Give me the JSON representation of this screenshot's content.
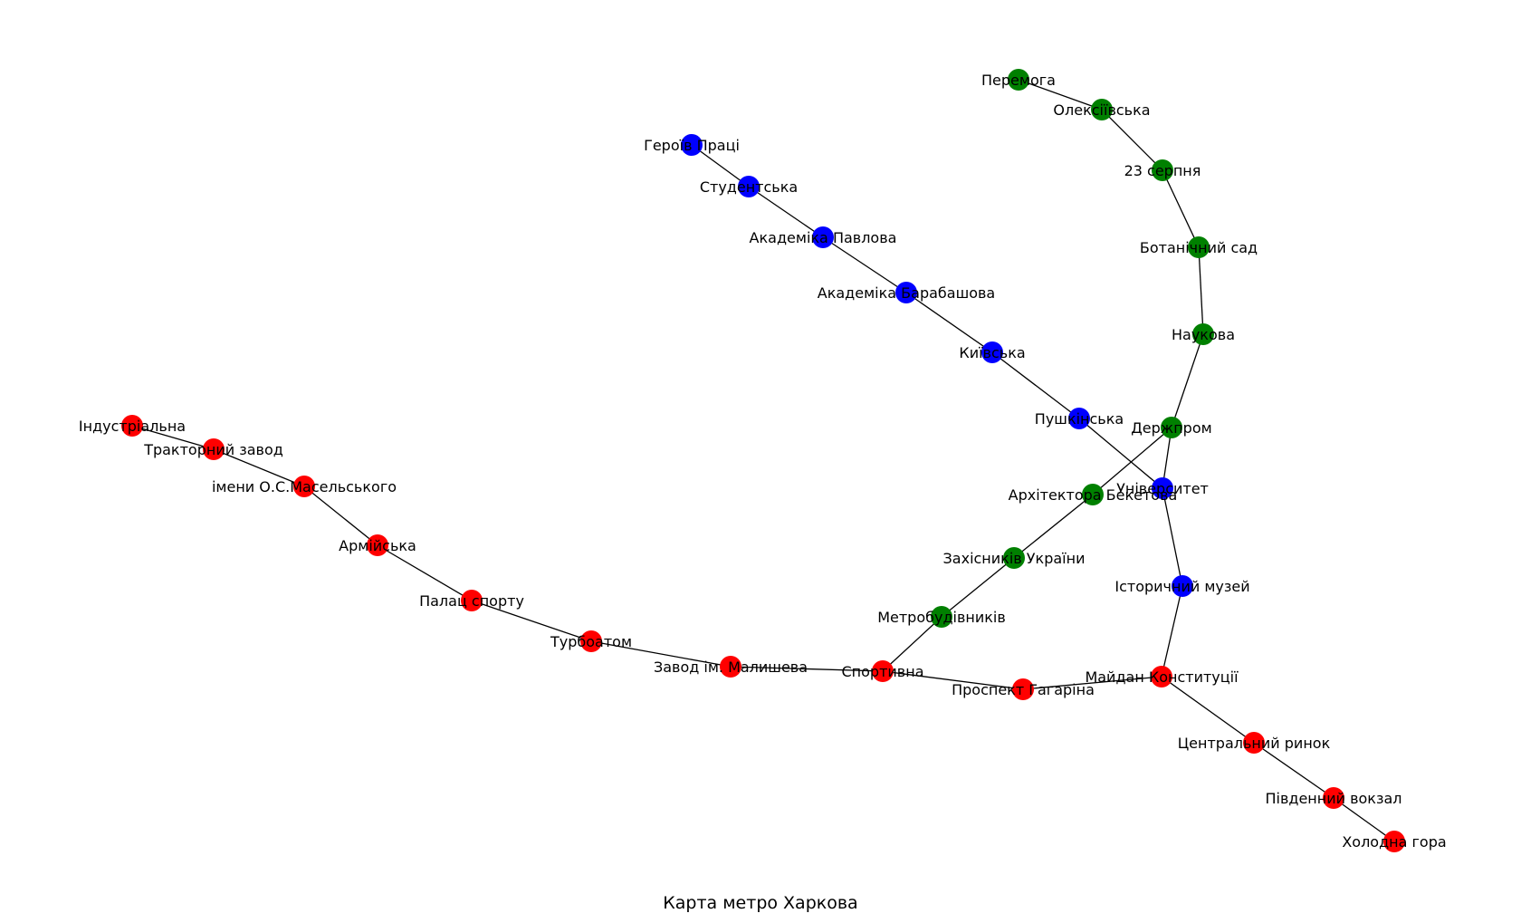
{
  "title": "Карта метро Харкова",
  "colors": {
    "red": "#ff0000",
    "blue": "#0000ff",
    "green": "#008000",
    "edge": "#000000"
  },
  "stations": [
    {
      "id": "industrialna",
      "name": "Індустріальна",
      "line": "red"
    },
    {
      "id": "traktornyi",
      "name": "Тракторний завод",
      "line": "red"
    },
    {
      "id": "maselskoho",
      "name": "імени О.С.Масельського",
      "line": "red"
    },
    {
      "id": "armiiska",
      "name": "Армійська",
      "line": "red"
    },
    {
      "id": "palats",
      "name": "Палац спорту",
      "line": "red"
    },
    {
      "id": "turboatom",
      "name": "Турбоатом",
      "line": "red"
    },
    {
      "id": "malysheva",
      "name": "Завод ім. Малишева",
      "line": "red"
    },
    {
      "id": "sportyvna",
      "name": "Спортивна",
      "line": "red"
    },
    {
      "id": "haharina",
      "name": "Проспект Гагаріна",
      "line": "red"
    },
    {
      "id": "maidan",
      "name": "Майдан Конституції",
      "line": "red"
    },
    {
      "id": "rynok",
      "name": "Центральний ринок",
      "line": "red"
    },
    {
      "id": "vokzal",
      "name": "Південний вокзал",
      "line": "red"
    },
    {
      "id": "kholodna",
      "name": "Холодна гора",
      "line": "red"
    },
    {
      "id": "heroiv",
      "name": "Героїв Праці",
      "line": "blue"
    },
    {
      "id": "studentska",
      "name": "Студентська",
      "line": "blue"
    },
    {
      "id": "pavlova",
      "name": "Академіка Павлова",
      "line": "blue"
    },
    {
      "id": "barabashova",
      "name": "Академіка Барабашова",
      "line": "blue"
    },
    {
      "id": "kyivska",
      "name": "Київська",
      "line": "blue"
    },
    {
      "id": "pushkinska",
      "name": "Пушкінська",
      "line": "blue"
    },
    {
      "id": "universytet",
      "name": "Університет",
      "line": "blue"
    },
    {
      "id": "muzei",
      "name": "Історичний  музей",
      "line": "blue"
    },
    {
      "id": "peremoha",
      "name": "Перемога",
      "line": "green"
    },
    {
      "id": "oleksiivska",
      "name": "Олексіївська",
      "line": "green"
    },
    {
      "id": "serpnia",
      "name": "23 серпня",
      "line": "green"
    },
    {
      "id": "botanichnyi",
      "name": "Ботанічний сад",
      "line": "green"
    },
    {
      "id": "naukova",
      "name": "Наукова",
      "line": "green"
    },
    {
      "id": "derzhprom",
      "name": "Держпром",
      "line": "green"
    },
    {
      "id": "beketova",
      "name": "Архітектора Бекетова",
      "line": "green"
    },
    {
      "id": "zakhysnykiv",
      "name": "Захісників України",
      "line": "green"
    },
    {
      "id": "metrobudivnykiv",
      "name": "Метробудівників",
      "line": "green"
    }
  ],
  "edges": [
    [
      "industrialna",
      "traktornyi"
    ],
    [
      "traktornyi",
      "maselskoho"
    ],
    [
      "maselskoho",
      "armiiska"
    ],
    [
      "armiiska",
      "palats"
    ],
    [
      "palats",
      "turboatom"
    ],
    [
      "turboatom",
      "malysheva"
    ],
    [
      "malysheva",
      "sportyvna"
    ],
    [
      "sportyvna",
      "haharina"
    ],
    [
      "haharina",
      "maidan"
    ],
    [
      "maidan",
      "rynok"
    ],
    [
      "rynok",
      "vokzal"
    ],
    [
      "vokzal",
      "kholodna"
    ],
    [
      "heroiv",
      "studentska"
    ],
    [
      "studentska",
      "pavlova"
    ],
    [
      "pavlova",
      "barabashova"
    ],
    [
      "barabashova",
      "kyivska"
    ],
    [
      "kyivska",
      "pushkinska"
    ],
    [
      "pushkinska",
      "universytet"
    ],
    [
      "universytet",
      "muzei"
    ],
    [
      "muzei",
      "maidan"
    ],
    [
      "peremoha",
      "oleksiivska"
    ],
    [
      "oleksiivska",
      "serpnia"
    ],
    [
      "serpnia",
      "botanichnyi"
    ],
    [
      "botanichnyi",
      "naukova"
    ],
    [
      "naukova",
      "derzhprom"
    ],
    [
      "derzhprom",
      "beketova"
    ],
    [
      "beketova",
      "zakhysnykiv"
    ],
    [
      "zakhysnykiv",
      "metrobudivnykiv"
    ],
    [
      "metrobudivnykiv",
      "sportyvna"
    ],
    [
      "derzhprom",
      "universytet"
    ]
  ]
}
